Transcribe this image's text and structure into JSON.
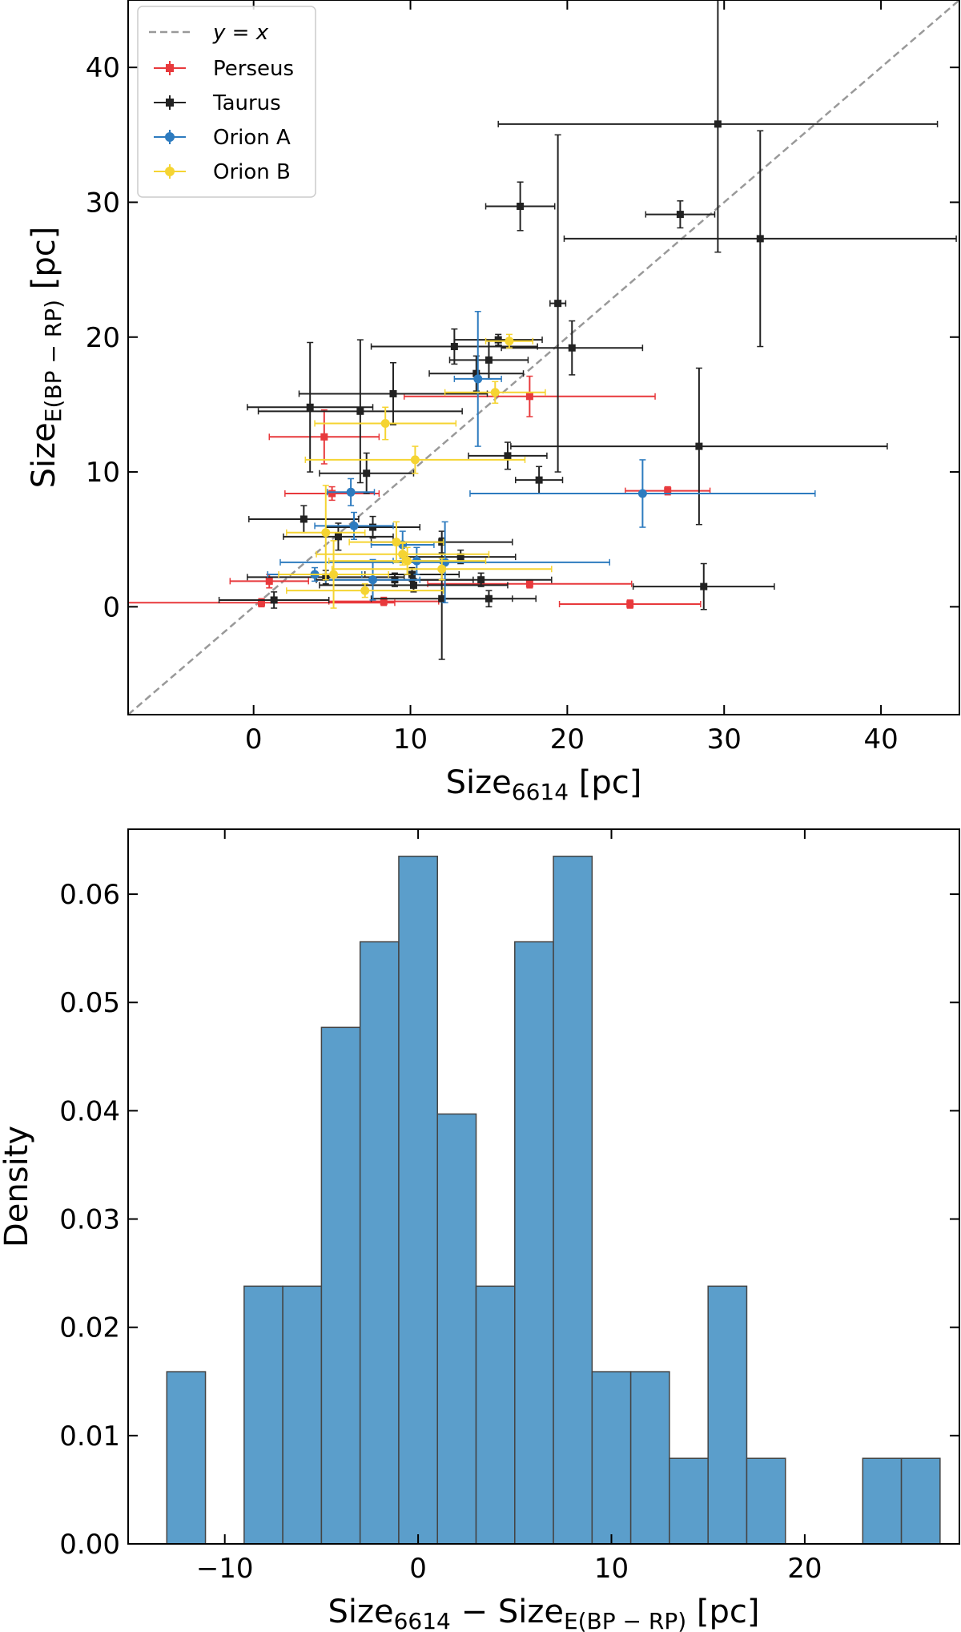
{
  "chart_data": [
    {
      "type": "scatter",
      "title": "",
      "xlabel": {
        "main": "Size",
        "sub": "6614",
        "unit": " [pc]"
      },
      "ylabel": {
        "main": "Size",
        "sub": "E(BP − RP)",
        "unit": " [pc]"
      },
      "xlim": [
        -8,
        45
      ],
      "ylim": [
        -8,
        45
      ],
      "xticks": [
        0,
        10,
        20,
        30,
        40
      ],
      "yticks": [
        0,
        10,
        20,
        30,
        40
      ],
      "reference_line": {
        "label_lhs": "y",
        "label_op": " = ",
        "label_rhs": "x",
        "color": "#999999"
      },
      "legend_position": "top-left",
      "series": [
        {
          "name": "Perseus",
          "color": "#e8393c",
          "marker": "square",
          "points": [
            {
              "x": 4.5,
              "y": 12.6,
              "xerr": 3.5,
              "yerr": 2.0
            },
            {
              "x": 17.6,
              "y": 15.6,
              "xerr": 8.0,
              "yerr": 1.5
            },
            {
              "x": 26.4,
              "y": 8.6,
              "xerr": 2.7,
              "yerr": 0.3
            },
            {
              "x": 1.0,
              "y": 1.9,
              "xerr": 2.5,
              "yerr": 0.5
            },
            {
              "x": 8.3,
              "y": 0.4,
              "xerr": 3.5,
              "yerr": 0.3
            },
            {
              "x": 17.6,
              "y": 1.7,
              "xerr": 6.5,
              "yerr": 0.3
            },
            {
              "x": 24.0,
              "y": 0.2,
              "xerr": 4.5,
              "yerr": 0.3
            },
            {
              "x": 0.5,
              "y": 0.3,
              "xerr": 8.5,
              "yerr": 0.3
            },
            {
              "x": 5.0,
              "y": 8.4,
              "xerr": 3.0,
              "yerr": 0.5
            }
          ]
        },
        {
          "name": "Taurus",
          "color": "#222222",
          "marker": "square",
          "points": [
            {
              "x": 29.6,
              "y": 35.8,
              "xerr": 14.0,
              "yerr": 9.5
            },
            {
              "x": 17.0,
              "y": 29.7,
              "xerr": 2.2,
              "yerr": 1.8
            },
            {
              "x": 27.2,
              "y": 29.1,
              "xerr": 2.2,
              "yerr": 1.0
            },
            {
              "x": 32.3,
              "y": 27.3,
              "xerr": 12.5,
              "yerr": 8.0
            },
            {
              "x": 19.4,
              "y": 22.5,
              "xerr": 0.5,
              "yerr": 12.5
            },
            {
              "x": 20.3,
              "y": 19.2,
              "xerr": 4.5,
              "yerr": 2.0
            },
            {
              "x": 15.6,
              "y": 19.8,
              "xerr": 2.8,
              "yerr": 0.4
            },
            {
              "x": 12.8,
              "y": 19.3,
              "xerr": 5.3,
              "yerr": 1.3
            },
            {
              "x": 15.0,
              "y": 18.3,
              "xerr": 2.5,
              "yerr": 1.4
            },
            {
              "x": 14.2,
              "y": 17.3,
              "xerr": 3.0,
              "yerr": 1.3
            },
            {
              "x": 3.6,
              "y": 14.8,
              "xerr": 4.0,
              "yerr": 4.8
            },
            {
              "x": 6.8,
              "y": 14.5,
              "xerr": 6.5,
              "yerr": 5.3
            },
            {
              "x": 8.9,
              "y": 15.8,
              "xerr": 6.0,
              "yerr": 2.3
            },
            {
              "x": 7.2,
              "y": 9.9,
              "xerr": 3.0,
              "yerr": 1.5
            },
            {
              "x": 16.2,
              "y": 11.2,
              "xerr": 2.5,
              "yerr": 1.0
            },
            {
              "x": 18.2,
              "y": 9.4,
              "xerr": 1.5,
              "yerr": 1.0
            },
            {
              "x": 28.4,
              "y": 11.9,
              "xerr": 12.0,
              "yerr": 5.8
            },
            {
              "x": 3.2,
              "y": 6.5,
              "xerr": 3.5,
              "yerr": 1.0
            },
            {
              "x": 5.4,
              "y": 5.2,
              "xerr": 3.5,
              "yerr": 1.0
            },
            {
              "x": 7.6,
              "y": 5.9,
              "xerr": 3.0,
              "yerr": 0.8
            },
            {
              "x": 12.0,
              "y": 4.8,
              "xerr": 4.5,
              "yerr": 0.8
            },
            {
              "x": 13.2,
              "y": 3.7,
              "xerr": 3.5,
              "yerr": 0.5
            },
            {
              "x": 4.6,
              "y": 2.2,
              "xerr": 5.0,
              "yerr": 0.5
            },
            {
              "x": 9.0,
              "y": 2.0,
              "xerr": 5.0,
              "yerr": 0.5
            },
            {
              "x": 10.2,
              "y": 1.6,
              "xerr": 6.0,
              "yerr": 0.5
            },
            {
              "x": 14.5,
              "y": 2.0,
              "xerr": 4.5,
              "yerr": 0.5
            },
            {
              "x": 12.0,
              "y": 0.6,
              "xerr": 4.5,
              "yerr": 4.5
            },
            {
              "x": 15.0,
              "y": 0.6,
              "xerr": 3.0,
              "yerr": 0.6
            },
            {
              "x": 1.3,
              "y": 0.5,
              "xerr": 3.5,
              "yerr": 0.6
            },
            {
              "x": 28.7,
              "y": 1.5,
              "xerr": 4.5,
              "yerr": 1.7
            },
            {
              "x": 10.1,
              "y": 2.4,
              "xerr": 3.0,
              "yerr": 0.5
            }
          ]
        },
        {
          "name": "Orion A",
          "color": "#2d7bbf",
          "marker": "circle",
          "points": [
            {
              "x": 14.3,
              "y": 16.9,
              "xerr": 1.5,
              "yerr": 5.0
            },
            {
              "x": 24.8,
              "y": 8.4,
              "xerr": 11.0,
              "yerr": 2.5
            },
            {
              "x": 6.2,
              "y": 8.5,
              "xerr": 1.5,
              "yerr": 1.0
            },
            {
              "x": 3.9,
              "y": 2.4,
              "xerr": 3.0,
              "yerr": 0.5
            },
            {
              "x": 10.4,
              "y": 3.4,
              "xerr": 1.5,
              "yerr": 1.0
            },
            {
              "x": 12.2,
              "y": 3.3,
              "xerr": 10.5,
              "yerr": 3.0
            },
            {
              "x": 7.6,
              "y": 2.0,
              "xerr": 3.0,
              "yerr": 1.5
            },
            {
              "x": 6.4,
              "y": 6.0,
              "xerr": 2.5,
              "yerr": 1.0
            },
            {
              "x": 9.5,
              "y": 4.6,
              "xerr": 2.0,
              "yerr": 1.0
            }
          ]
        },
        {
          "name": "Orion B",
          "color": "#f5d432",
          "marker": "circle",
          "points": [
            {
              "x": 16.3,
              "y": 19.7,
              "xerr": 1.5,
              "yerr": 0.5
            },
            {
              "x": 15.4,
              "y": 15.9,
              "xerr": 3.2,
              "yerr": 0.8
            },
            {
              "x": 8.4,
              "y": 13.6,
              "xerr": 4.5,
              "yerr": 1.2
            },
            {
              "x": 10.3,
              "y": 10.9,
              "xerr": 7.0,
              "yerr": 1.0
            },
            {
              "x": 4.6,
              "y": 5.5,
              "xerr": 2.5,
              "yerr": 3.5
            },
            {
              "x": 5.1,
              "y": 2.4,
              "xerr": 3.5,
              "yerr": 2.5
            },
            {
              "x": 9.1,
              "y": 4.8,
              "xerr": 3.0,
              "yerr": 1.5
            },
            {
              "x": 9.8,
              "y": 3.4,
              "xerr": 5.0,
              "yerr": 1.0
            },
            {
              "x": 12.0,
              "y": 2.8,
              "xerr": 7.0,
              "yerr": 0.8
            },
            {
              "x": 7.1,
              "y": 1.2,
              "xerr": 5.0,
              "yerr": 0.5
            },
            {
              "x": 9.5,
              "y": 3.9,
              "xerr": 5.5,
              "yerr": 0.8
            }
          ]
        }
      ]
    },
    {
      "type": "bar",
      "subtype": "histogram",
      "title": "",
      "xlabel": {
        "a_main": "Size",
        "a_sub": "6614",
        "op": " − ",
        "b_main": "Size",
        "b_sub": "E(BP − RP)",
        "unit": " [pc]"
      },
      "ylabel": "Density",
      "xlim": [
        -15,
        28
      ],
      "ylim": [
        0,
        0.066
      ],
      "xticks": [
        -10,
        0,
        10,
        20
      ],
      "yticks": [
        0,
        0.01,
        0.02,
        0.03,
        0.04,
        0.05,
        0.06
      ],
      "ytick_labels": [
        "0.00",
        "0.01",
        "0.02",
        "0.03",
        "0.04",
        "0.05",
        "0.06"
      ],
      "xtick_labels": [
        "−10",
        "0",
        "10",
        "20"
      ],
      "color": "#5b9ecb",
      "edgecolor": "#444444",
      "bin_width": 2.0,
      "bins": [
        {
          "left": -13.0,
          "density": 0.0159
        },
        {
          "left": -9.0,
          "density": 0.0238
        },
        {
          "left": -7.0,
          "density": 0.0238
        },
        {
          "left": -5.0,
          "density": 0.0477
        },
        {
          "left": -3.0,
          "density": 0.0556
        },
        {
          "left": -1.0,
          "density": 0.0635
        },
        {
          "left": 1.0,
          "density": 0.0397
        },
        {
          "left": 3.0,
          "density": 0.0238
        },
        {
          "left": 5.0,
          "density": 0.0556
        },
        {
          "left": 7.0,
          "density": 0.0635
        },
        {
          "left": 9.0,
          "density": 0.0159
        },
        {
          "left": 11.0,
          "density": 0.0159
        },
        {
          "left": 13.0,
          "density": 0.0079
        },
        {
          "left": 15.0,
          "density": 0.0238
        },
        {
          "left": 17.0,
          "density": 0.0079
        },
        {
          "left": 23.0,
          "density": 0.0079
        },
        {
          "left": 25.0,
          "density": 0.0079
        }
      ]
    }
  ]
}
